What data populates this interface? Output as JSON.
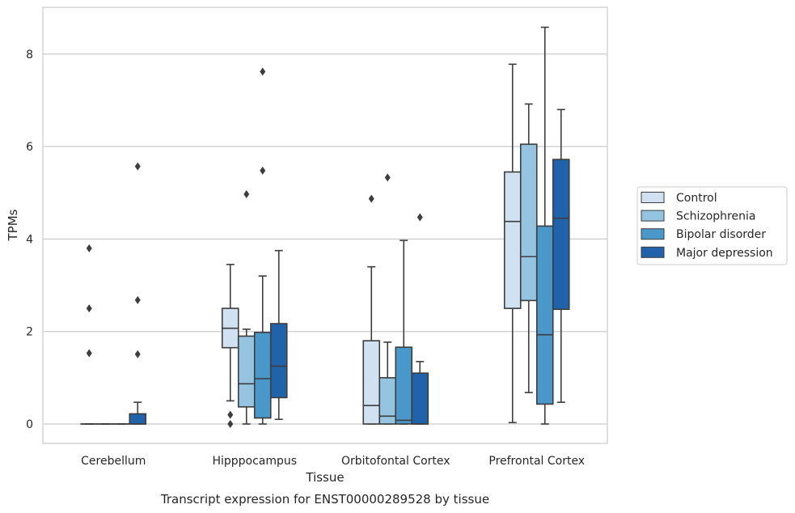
{
  "chart_data": {
    "type": "box",
    "title": "",
    "caption": "Transcript expression for ENST00000289528 by tissue",
    "xlabel": "Tissue",
    "ylabel": "TPMs",
    "ylim": [
      -0.4,
      9.0
    ],
    "yticks": [
      0,
      2,
      4,
      6,
      8
    ],
    "grid": "horizontal",
    "legend_position": "right",
    "categories": [
      "Cerebellum",
      "Hipppocampus",
      "Orbitofontal Cortex",
      "Prefrontal Cortex"
    ],
    "series": [
      {
        "name": "Control",
        "color": "#d0e1f2",
        "boxes": [
          {
            "whislo": 0,
            "q1": 0,
            "med": 0,
            "q3": 0,
            "whishi": 0,
            "fliers": [
              3.8,
              2.5,
              1.53
            ]
          },
          {
            "whislo": 0.5,
            "q1": 1.65,
            "med": 2.07,
            "q3": 2.5,
            "whishi": 3.45,
            "fliers": [
              0.2,
              0.0
            ]
          },
          {
            "whislo": 0,
            "q1": 0,
            "med": 0.4,
            "q3": 1.8,
            "whishi": 3.4,
            "fliers": [
              4.87
            ]
          },
          {
            "whislo": 0.03,
            "q1": 2.5,
            "med": 4.38,
            "q3": 5.45,
            "whishi": 7.78,
            "fliers": []
          }
        ]
      },
      {
        "name": "Schizophrenia",
        "color": "#94c4df",
        "boxes": [
          {
            "whislo": 0,
            "q1": 0,
            "med": 0,
            "q3": 0,
            "whishi": 0,
            "fliers": []
          },
          {
            "whislo": 0,
            "q1": 0.37,
            "med": 0.87,
            "q3": 1.9,
            "whishi": 2.05,
            "fliers": [
              4.97
            ]
          },
          {
            "whislo": 0,
            "q1": 0,
            "med": 0.17,
            "q3": 1.0,
            "whishi": 1.77,
            "fliers": [
              5.33
            ]
          },
          {
            "whislo": 0.68,
            "q1": 2.67,
            "med": 3.62,
            "q3": 6.05,
            "whishi": 6.92,
            "fliers": []
          }
        ]
      },
      {
        "name": "Bipolar disorder",
        "color": "#4a98c9",
        "boxes": [
          {
            "whislo": 0,
            "q1": 0,
            "med": 0,
            "q3": 0,
            "whishi": 0,
            "fliers": []
          },
          {
            "whislo": 0,
            "q1": 0.13,
            "med": 0.98,
            "q3": 1.98,
            "whishi": 3.2,
            "fliers": [
              7.62,
              5.48
            ]
          },
          {
            "whislo": 0,
            "q1": 0,
            "med": 0.08,
            "q3": 1.66,
            "whishi": 3.97,
            "fliers": []
          },
          {
            "whislo": 0,
            "q1": 0.43,
            "med": 1.93,
            "q3": 4.28,
            "whishi": 8.58,
            "fliers": []
          }
        ]
      },
      {
        "name": "Major depression",
        "color": "#2163aa",
        "boxes": [
          {
            "whislo": 0,
            "q1": 0,
            "med": 0,
            "q3": 0.22,
            "whishi": 0.47,
            "fliers": [
              5.57,
              2.68,
              1.51
            ]
          },
          {
            "whislo": 0.1,
            "q1": 0.57,
            "med": 1.25,
            "q3": 2.17,
            "whishi": 3.75,
            "fliers": []
          },
          {
            "whislo": 0,
            "q1": 0,
            "med": 0,
            "q3": 1.1,
            "whishi": 1.35,
            "fliers": [
              4.47
            ]
          },
          {
            "whislo": 0.47,
            "q1": 2.48,
            "med": 4.45,
            "q3": 5.72,
            "whishi": 6.8,
            "fliers": []
          }
        ]
      }
    ]
  }
}
